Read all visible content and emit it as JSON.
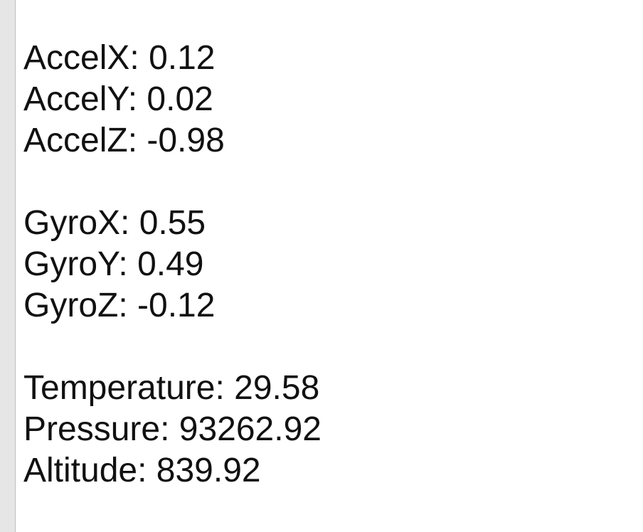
{
  "accel": [
    {
      "label": "AccelX: ",
      "value": "0.12"
    },
    {
      "label": "AccelY: ",
      "value": "0.02"
    },
    {
      "label": "AccelZ: ",
      "value": "-0.98"
    }
  ],
  "gyro": [
    {
      "label": "GyroX: ",
      "value": "0.55"
    },
    {
      "label": "GyroY: ",
      "value": "0.49"
    },
    {
      "label": "GyroZ: ",
      "value": "-0.12"
    }
  ],
  "env": [
    {
      "label": "Temperature: ",
      "value": "29.58"
    },
    {
      "label": "Pressure: ",
      "value": "93262.92"
    },
    {
      "label": "Altitude: ",
      "value": "839.92"
    }
  ]
}
